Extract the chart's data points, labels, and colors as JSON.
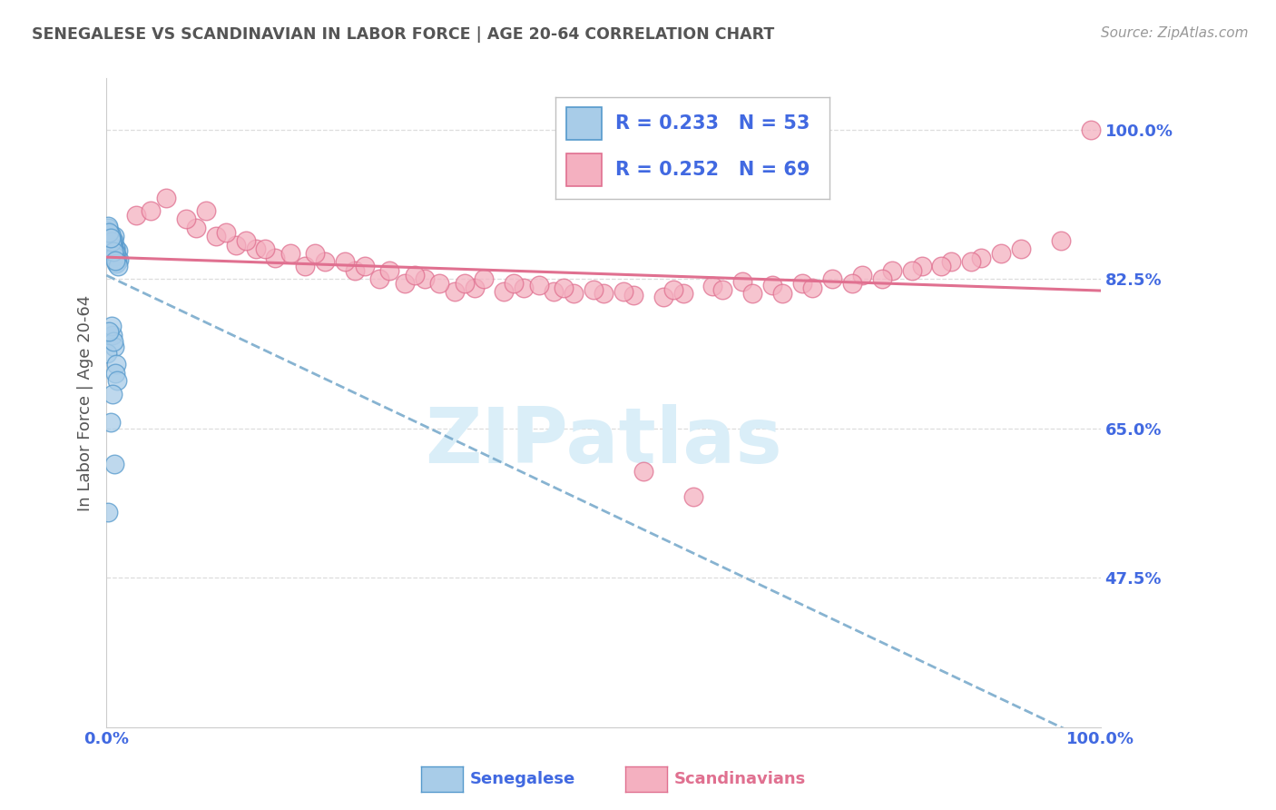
{
  "title": "SENEGALESE VS SCANDINAVIAN IN LABOR FORCE | AGE 20-64 CORRELATION CHART",
  "source": "Source: ZipAtlas.com",
  "ylabel": "In Labor Force | Age 20-64",
  "xlim": [
    0.0,
    1.0
  ],
  "ylim": [
    0.3,
    1.06
  ],
  "ytick_vals": [
    0.475,
    0.65,
    0.825,
    1.0
  ],
  "ytick_labels": [
    "47.5%",
    "65.0%",
    "82.5%",
    "100.0%"
  ],
  "xtick_vals": [
    0.0,
    0.1,
    0.2,
    0.3,
    0.4,
    0.5,
    0.6,
    0.7,
    0.8,
    0.9,
    1.0
  ],
  "xtick_labels": [
    "0.0%",
    "",
    "",
    "",
    "",
    "",
    "",
    "",
    "",
    "",
    "100.0%"
  ],
  "legend_r_sen": "R = 0.233",
  "legend_n_sen": "N = 53",
  "legend_r_sca": "R = 0.252",
  "legend_n_sca": "N = 69",
  "sen_face_color": "#a8cce8",
  "sen_edge_color": "#5599cc",
  "sca_face_color": "#f4b0c0",
  "sca_edge_color": "#e07090",
  "trend_sen_color": "#7aabcc",
  "trend_sca_color": "#e07090",
  "watermark_color": "#daeef8",
  "title_color": "#555555",
  "ylabel_color": "#555555",
  "tick_color": "#4169e1",
  "grid_color": "#dddddd",
  "bg_color": "#ffffff",
  "source_color": "#999999",
  "legend_text_color": "#4169e1",
  "bottom_sen_label": "Senegalese",
  "bottom_sca_label": "Scandinavians",
  "sen_x": [
    0.005,
    0.008,
    0.003,
    0.01,
    0.006,
    0.002,
    0.012,
    0.007,
    0.004,
    0.009,
    0.011,
    0.003,
    0.006,
    0.008,
    0.001,
    0.005,
    0.009,
    0.013,
    0.007,
    0.004,
    0.002,
    0.01,
    0.006,
    0.008,
    0.003,
    0.011,
    0.005,
    0.007,
    0.009,
    0.004,
    0.006,
    0.002,
    0.008,
    0.01,
    0.005,
    0.012,
    0.003,
    0.007,
    0.009,
    0.004,
    0.006,
    0.008,
    0.001,
    0.01,
    0.005,
    0.007,
    0.003,
    0.009,
    0.011,
    0.006,
    0.004,
    0.008,
    0.002
  ],
  "sen_y": [
    0.87,
    0.875,
    0.865,
    0.855,
    0.862,
    0.88,
    0.858,
    0.868,
    0.873,
    0.86,
    0.85,
    0.878,
    0.865,
    0.855,
    0.882,
    0.872,
    0.863,
    0.848,
    0.87,
    0.876,
    0.885,
    0.853,
    0.867,
    0.858,
    0.875,
    0.845,
    0.871,
    0.861,
    0.856,
    0.877,
    0.863,
    0.887,
    0.852,
    0.843,
    0.869,
    0.84,
    0.879,
    0.857,
    0.847,
    0.873,
    0.759,
    0.745,
    0.738,
    0.725,
    0.77,
    0.752,
    0.763,
    0.715,
    0.706,
    0.69,
    0.657,
    0.608,
    0.552
  ],
  "sca_x": [
    0.03,
    0.06,
    0.045,
    0.09,
    0.08,
    0.11,
    0.1,
    0.13,
    0.12,
    0.15,
    0.14,
    0.17,
    0.16,
    0.2,
    0.185,
    0.22,
    0.21,
    0.25,
    0.24,
    0.275,
    0.26,
    0.3,
    0.285,
    0.32,
    0.31,
    0.35,
    0.335,
    0.37,
    0.36,
    0.4,
    0.38,
    0.42,
    0.41,
    0.45,
    0.435,
    0.47,
    0.46,
    0.5,
    0.49,
    0.53,
    0.52,
    0.56,
    0.54,
    0.58,
    0.57,
    0.61,
    0.59,
    0.64,
    0.62,
    0.67,
    0.65,
    0.7,
    0.68,
    0.73,
    0.71,
    0.76,
    0.75,
    0.79,
    0.78,
    0.82,
    0.81,
    0.85,
    0.84,
    0.88,
    0.87,
    0.92,
    0.9,
    0.96,
    0.99
  ],
  "sca_y": [
    0.9,
    0.92,
    0.905,
    0.885,
    0.895,
    0.875,
    0.905,
    0.865,
    0.88,
    0.86,
    0.87,
    0.85,
    0.86,
    0.84,
    0.855,
    0.845,
    0.855,
    0.835,
    0.845,
    0.825,
    0.84,
    0.82,
    0.835,
    0.825,
    0.83,
    0.81,
    0.82,
    0.815,
    0.82,
    0.81,
    0.825,
    0.815,
    0.82,
    0.81,
    0.818,
    0.808,
    0.815,
    0.808,
    0.812,
    0.806,
    0.81,
    0.804,
    0.6,
    0.808,
    0.812,
    0.817,
    0.57,
    0.822,
    0.812,
    0.818,
    0.808,
    0.82,
    0.808,
    0.825,
    0.815,
    0.83,
    0.82,
    0.835,
    0.825,
    0.84,
    0.835,
    0.845,
    0.84,
    0.85,
    0.845,
    0.86,
    0.855,
    0.87,
    1.0
  ]
}
